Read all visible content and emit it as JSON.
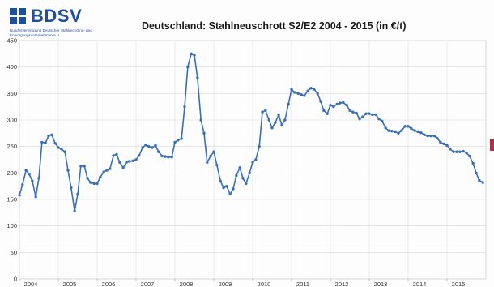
{
  "logo": {
    "name": "BDSV",
    "subtitle": "Bundesvereinigung Deutscher Stahlrecycling- und Entsorgungsunternehmen e.V.",
    "color": "#1f4e9a"
  },
  "accent_marker_color": "#c2244a",
  "chart_data": {
    "type": "line",
    "title": "Deutschland: Stahlneuschrott S2/E2  2004 - 2015 (in €/t)",
    "xlabel": "",
    "ylabel": "",
    "xlim": [
      2004,
      2016
    ],
    "ylim": [
      0,
      450
    ],
    "y_ticks": [
      0,
      50,
      100,
      150,
      200,
      250,
      300,
      350,
      400,
      450
    ],
    "x_tick_labels": [
      "2004",
      "2005",
      "2006",
      "2007",
      "2008",
      "2009",
      "2010",
      "2011",
      "2012",
      "2013",
      "2014",
      "2015"
    ],
    "grid": true,
    "legend": "none",
    "series": [
      {
        "color": "#3a6fb7",
        "points": [
          [
            2004.0,
            158
          ],
          [
            2004.08,
            178
          ],
          [
            2004.17,
            205
          ],
          [
            2004.25,
            198
          ],
          [
            2004.33,
            185
          ],
          [
            2004.42,
            155
          ],
          [
            2004.5,
            190
          ],
          [
            2004.58,
            258
          ],
          [
            2004.67,
            257
          ],
          [
            2004.75,
            270
          ],
          [
            2004.83,
            272
          ],
          [
            2004.92,
            256
          ],
          [
            2005.0,
            248
          ],
          [
            2005.08,
            245
          ],
          [
            2005.17,
            240
          ],
          [
            2005.25,
            205
          ],
          [
            2005.33,
            172
          ],
          [
            2005.42,
            128
          ],
          [
            2005.5,
            160
          ],
          [
            2005.58,
            213
          ],
          [
            2005.67,
            213
          ],
          [
            2005.75,
            190
          ],
          [
            2005.83,
            182
          ],
          [
            2005.92,
            180
          ],
          [
            2006.0,
            180
          ],
          [
            2006.08,
            192
          ],
          [
            2006.17,
            202
          ],
          [
            2006.25,
            205
          ],
          [
            2006.33,
            208
          ],
          [
            2006.42,
            233
          ],
          [
            2006.5,
            235
          ],
          [
            2006.58,
            220
          ],
          [
            2006.67,
            210
          ],
          [
            2006.75,
            220
          ],
          [
            2006.83,
            222
          ],
          [
            2006.92,
            223
          ],
          [
            2007.0,
            225
          ],
          [
            2007.08,
            233
          ],
          [
            2007.17,
            248
          ],
          [
            2007.25,
            253
          ],
          [
            2007.33,
            250
          ],
          [
            2007.42,
            248
          ],
          [
            2007.5,
            252
          ],
          [
            2007.58,
            240
          ],
          [
            2007.67,
            232
          ],
          [
            2007.75,
            231
          ],
          [
            2007.83,
            230
          ],
          [
            2007.92,
            230
          ],
          [
            2008.0,
            258
          ],
          [
            2008.08,
            262
          ],
          [
            2008.17,
            265
          ],
          [
            2008.25,
            325
          ],
          [
            2008.33,
            400
          ],
          [
            2008.42,
            425
          ],
          [
            2008.5,
            422
          ],
          [
            2008.58,
            380
          ],
          [
            2008.67,
            300
          ],
          [
            2008.75,
            275
          ],
          [
            2008.83,
            220
          ],
          [
            2008.92,
            232
          ],
          [
            2009.0,
            240
          ],
          [
            2009.08,
            215
          ],
          [
            2009.17,
            185
          ],
          [
            2009.25,
            172
          ],
          [
            2009.33,
            175
          ],
          [
            2009.42,
            160
          ],
          [
            2009.5,
            170
          ],
          [
            2009.58,
            195
          ],
          [
            2009.67,
            210
          ],
          [
            2009.75,
            190
          ],
          [
            2009.83,
            180
          ],
          [
            2009.92,
            200
          ],
          [
            2010.0,
            220
          ],
          [
            2010.08,
            225
          ],
          [
            2010.17,
            250
          ],
          [
            2010.25,
            315
          ],
          [
            2010.33,
            318
          ],
          [
            2010.42,
            300
          ],
          [
            2010.5,
            285
          ],
          [
            2010.58,
            295
          ],
          [
            2010.67,
            310
          ],
          [
            2010.75,
            290
          ],
          [
            2010.83,
            300
          ],
          [
            2010.92,
            330
          ],
          [
            2011.0,
            358
          ],
          [
            2011.08,
            352
          ],
          [
            2011.17,
            350
          ],
          [
            2011.25,
            348
          ],
          [
            2011.33,
            346
          ],
          [
            2011.42,
            355
          ],
          [
            2011.5,
            360
          ],
          [
            2011.58,
            358
          ],
          [
            2011.67,
            350
          ],
          [
            2011.75,
            335
          ],
          [
            2011.83,
            318
          ],
          [
            2011.92,
            312
          ],
          [
            2012.0,
            328
          ],
          [
            2012.08,
            325
          ],
          [
            2012.17,
            330
          ],
          [
            2012.25,
            332
          ],
          [
            2012.33,
            333
          ],
          [
            2012.42,
            328
          ],
          [
            2012.5,
            318
          ],
          [
            2012.58,
            315
          ],
          [
            2012.67,
            313
          ],
          [
            2012.75,
            302
          ],
          [
            2012.83,
            306
          ],
          [
            2012.92,
            312
          ],
          [
            2013.0,
            312
          ],
          [
            2013.08,
            310
          ],
          [
            2013.17,
            310
          ],
          [
            2013.25,
            302
          ],
          [
            2013.33,
            298
          ],
          [
            2013.42,
            285
          ],
          [
            2013.5,
            280
          ],
          [
            2013.58,
            279
          ],
          [
            2013.67,
            278
          ],
          [
            2013.75,
            275
          ],
          [
            2013.83,
            280
          ],
          [
            2013.92,
            288
          ],
          [
            2014.0,
            288
          ],
          [
            2014.08,
            284
          ],
          [
            2014.17,
            280
          ],
          [
            2014.25,
            278
          ],
          [
            2014.33,
            276
          ],
          [
            2014.42,
            272
          ],
          [
            2014.5,
            270
          ],
          [
            2014.58,
            270
          ],
          [
            2014.67,
            270
          ],
          [
            2014.75,
            265
          ],
          [
            2014.83,
            258
          ],
          [
            2014.92,
            255
          ],
          [
            2015.0,
            252
          ],
          [
            2015.08,
            245
          ],
          [
            2015.17,
            240
          ],
          [
            2015.25,
            240
          ],
          [
            2015.33,
            240
          ],
          [
            2015.42,
            241
          ],
          [
            2015.5,
            238
          ],
          [
            2015.58,
            232
          ],
          [
            2015.67,
            218
          ],
          [
            2015.75,
            200
          ],
          [
            2015.83,
            186
          ],
          [
            2015.92,
            182
          ]
        ]
      }
    ]
  }
}
